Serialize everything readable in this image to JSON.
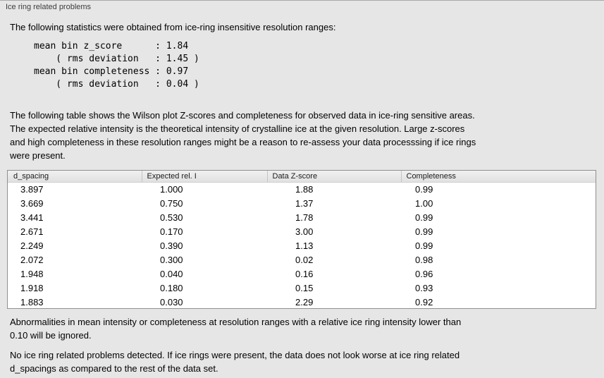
{
  "panel": {
    "title": "Ice ring related problems"
  },
  "intro": "The following statistics were obtained from ice-ring insensitive resolution ranges:",
  "stats_block": "mean bin z_score      : 1.84\n    ( rms deviation   : 1.45 )\nmean bin completeness : 0.97\n    ( rms deviation   : 0.04 )",
  "table_description": "The following table shows the Wilson plot Z-scores and completeness for observed data in ice-ring sensitive areas.\nThe expected relative intensity is the theoretical intensity of crystalline ice at the given resolution. Large z-scores\nand high completeness in these resolution ranges might be a reason to re-assess your data processsing if ice rings\nwere present.",
  "table": {
    "headers": [
      "d_spacing",
      "Expected rel. I",
      "Data Z-score",
      "Completeness"
    ],
    "rows": [
      [
        "3.897",
        "1.000",
        "1.88",
        "0.99"
      ],
      [
        "3.669",
        "0.750",
        "1.37",
        "1.00"
      ],
      [
        "3.441",
        "0.530",
        "1.78",
        "0.99"
      ],
      [
        "2.671",
        "0.170",
        "3.00",
        "0.99"
      ],
      [
        "2.249",
        "0.390",
        "1.13",
        "0.99"
      ],
      [
        "2.072",
        "0.300",
        "0.02",
        "0.98"
      ],
      [
        "1.948",
        "0.040",
        "0.16",
        "0.96"
      ],
      [
        "1.918",
        "0.180",
        "0.15",
        "0.93"
      ],
      [
        "1.883",
        "0.030",
        "2.29",
        "0.92"
      ]
    ]
  },
  "note": "Abnormalities in mean intensity or completeness at resolution ranges with a relative ice ring intensity lower than\n0.10 will be ignored.",
  "conclusion": "No ice ring related problems detected. If ice rings were present, the data does not look worse at ice ring related\nd_spacings as compared to the rest of the data set."
}
